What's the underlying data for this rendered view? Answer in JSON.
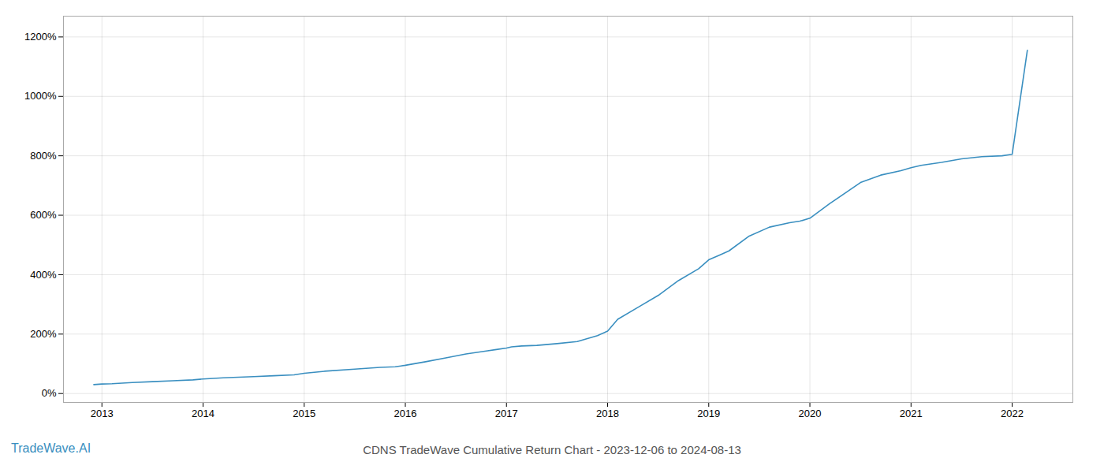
{
  "chart_data": {
    "type": "line",
    "title": "CDNS TradeWave Cumulative Return Chart - 2023-12-06 to 2024-08-13",
    "annotations": [
      {
        "text": "TradeWave.AI",
        "color": "#3a8fc0"
      }
    ],
    "color": "#3a8fc0",
    "x": [
      2012.92,
      2013.0,
      2013.1,
      2013.2,
      2013.3,
      2013.5,
      2013.7,
      2013.9,
      2014.0,
      2014.2,
      2014.5,
      2014.7,
      2014.9,
      2015.0,
      2015.2,
      2015.5,
      2015.75,
      2015.9,
      2016.0,
      2016.2,
      2016.4,
      2016.6,
      2016.8,
      2016.9,
      2017.0,
      2017.05,
      2017.15,
      2017.3,
      2017.5,
      2017.7,
      2017.9,
      2018.0,
      2018.1,
      2018.3,
      2018.5,
      2018.7,
      2018.9,
      2019.0,
      2019.1,
      2019.2,
      2019.4,
      2019.6,
      2019.8,
      2019.9,
      2020.0,
      2020.2,
      2020.5,
      2020.7,
      2020.9,
      2021.0,
      2021.1,
      2021.3,
      2021.5,
      2021.7,
      2021.9,
      2022.0,
      2022.15
    ],
    "values": [
      30,
      32,
      33,
      35,
      37,
      40,
      43,
      46,
      49,
      53,
      57,
      60,
      63,
      68,
      75,
      82,
      88,
      90,
      95,
      107,
      120,
      133,
      143,
      148,
      153,
      157,
      160,
      162,
      168,
      175,
      195,
      210,
      250,
      290,
      330,
      380,
      420,
      450,
      465,
      480,
      530,
      560,
      575,
      580,
      590,
      640,
      710,
      735,
      750,
      760,
      768,
      778,
      790,
      797,
      800,
      805,
      1155
    ],
    "xlim": [
      2012.62,
      2022.6
    ],
    "ylim": [
      -30,
      1270
    ],
    "xticks": [
      2013,
      2014,
      2015,
      2016,
      2017,
      2018,
      2019,
      2020,
      2021,
      2022
    ],
    "yticks": [
      {
        "value": 0,
        "label": "0%"
      },
      {
        "value": 200,
        "label": "200%"
      },
      {
        "value": 400,
        "label": "400%"
      },
      {
        "value": 600,
        "label": "600%"
      },
      {
        "value": 800,
        "label": "800%"
      },
      {
        "value": 1000,
        "label": "1000%"
      },
      {
        "value": 1200,
        "label": "1200%"
      }
    ],
    "grid": true
  }
}
